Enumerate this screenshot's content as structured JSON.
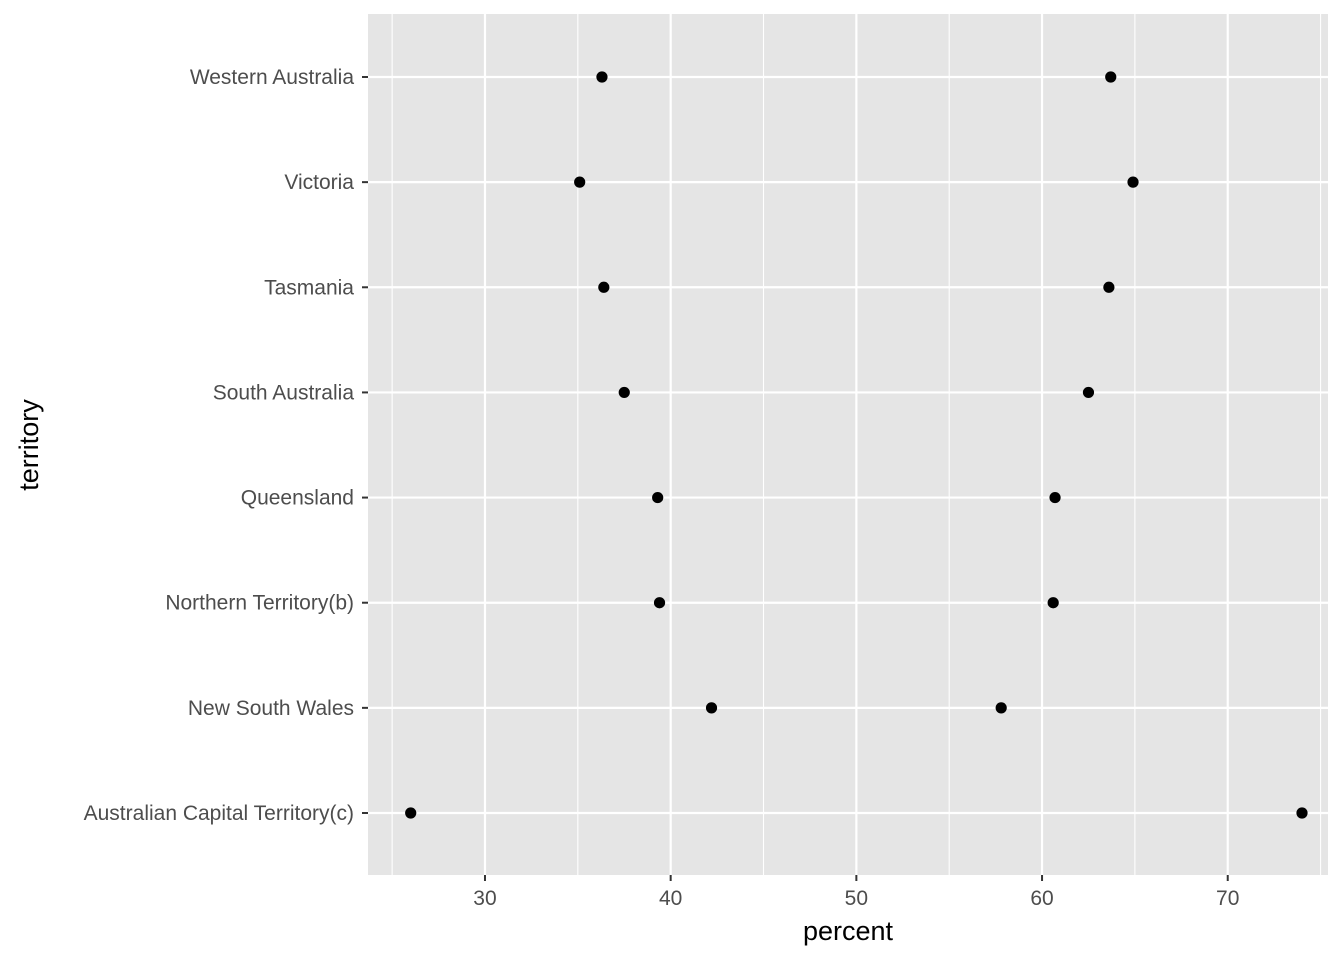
{
  "chart_data": {
    "type": "scatter",
    "title": "",
    "xlabel": "percent",
    "ylabel": "territory",
    "xlim": [
      23.7,
      75.4
    ],
    "xticks": [
      30,
      40,
      50,
      60,
      70
    ],
    "grid": true,
    "legend": "none",
    "categories": [
      "Australian Capital Territory(c)",
      "New South Wales",
      "Northern Territory(b)",
      "Queensland",
      "South Australia",
      "Tasmania",
      "Victoria",
      "Western Australia"
    ],
    "series": [
      {
        "values": [
          26.0,
          42.2,
          39.4,
          39.3,
          37.5,
          36.4,
          35.1,
          36.3
        ]
      },
      {
        "values": [
          74.0,
          57.8,
          60.6,
          60.7,
          62.5,
          63.6,
          64.9,
          63.7
        ]
      }
    ],
    "colors": {
      "panel_background": "#e5e5e5",
      "grid_line": "#ffffff",
      "point": "#000000",
      "tick_label": "#4d4d4d",
      "axis_title": "#000000"
    }
  }
}
